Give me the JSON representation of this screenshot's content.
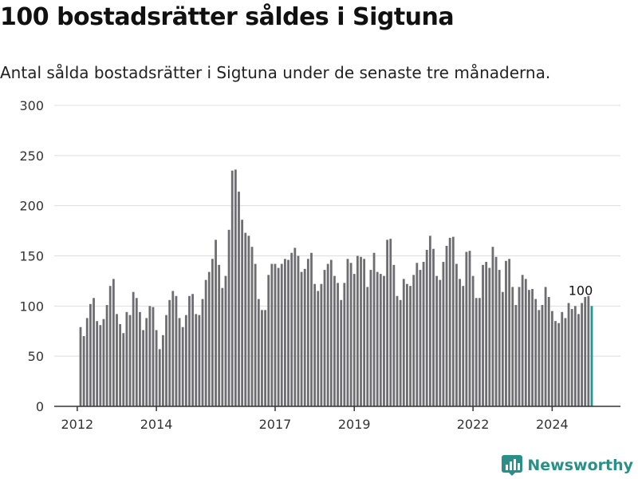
{
  "header": {
    "title": "100 bostadsrätter såldes i Sigtuna",
    "subtitle": "Antal sålda bostadsrätter i Sigtuna under de senaste tre månaderna."
  },
  "brand": {
    "name": "Newsworthy",
    "color": "#2a8f87",
    "icon": "newsworthy-logo-icon"
  },
  "colors": {
    "bar": "#6e6d72",
    "highlight": "#1f9a8e",
    "grid": "#dddddd"
  },
  "chart_data": {
    "type": "bar",
    "title": "",
    "xlabel": "",
    "ylabel": "",
    "ylim": [
      0,
      300
    ],
    "yticks": [
      0,
      50,
      100,
      150,
      200,
      250,
      300
    ],
    "grid": true,
    "x_tick_labels": [
      "2012",
      "2014",
      "2017",
      "2019",
      "2022",
      "2024"
    ],
    "annotation": "100",
    "values": [
      79,
      70,
      88,
      102,
      108,
      85,
      81,
      87,
      101,
      120,
      127,
      92,
      82,
      73,
      94,
      91,
      114,
      108,
      94,
      76,
      88,
      100,
      99,
      76,
      57,
      71,
      91,
      106,
      115,
      110,
      88,
      79,
      91,
      110,
      112,
      92,
      91,
      107,
      126,
      134,
      147,
      166,
      141,
      118,
      130,
      176,
      235,
      236,
      214,
      186,
      173,
      170,
      159,
      142,
      107,
      96,
      96,
      131,
      142,
      142,
      138,
      142,
      147,
      146,
      153,
      158,
      150,
      134,
      137,
      147,
      153,
      122,
      115,
      122,
      136,
      142,
      146,
      130,
      123,
      106,
      123,
      147,
      143,
      132,
      150,
      149,
      147,
      119,
      136,
      153,
      134,
      132,
      130,
      166,
      167,
      141,
      110,
      106,
      127,
      122,
      120,
      131,
      143,
      136,
      144,
      156,
      170,
      157,
      130,
      126,
      144,
      160,
      168,
      169,
      142,
      127,
      120,
      154,
      155,
      130,
      108,
      108,
      141,
      144,
      138,
      159,
      149,
      136,
      114,
      145,
      147,
      119,
      101,
      119,
      131,
      127,
      116,
      117,
      107,
      96,
      101,
      119,
      109,
      95,
      85,
      83,
      94,
      88,
      103,
      97,
      100,
      92,
      103,
      109,
      110,
      100
    ]
  }
}
